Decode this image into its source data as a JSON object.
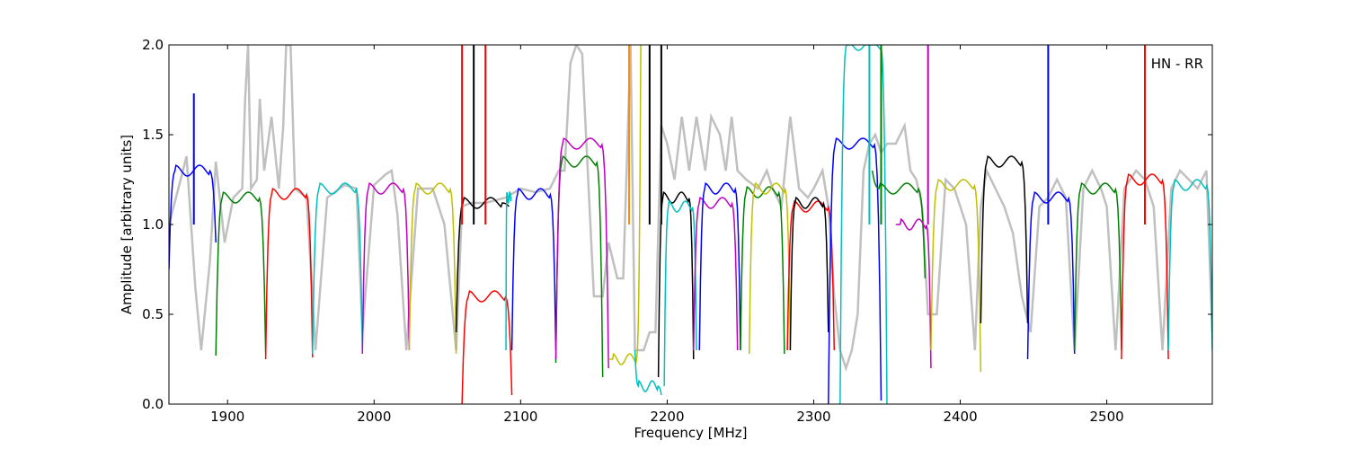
{
  "chart_data": {
    "type": "line",
    "title": "",
    "annotation": "HN - RR",
    "xlabel": "Frequency [MHz]",
    "ylabel": "Amplitude [arbitrary units]",
    "xlim": [
      1860,
      2572
    ],
    "ylim": [
      0,
      2.0
    ],
    "xticks": [
      1900,
      2000,
      2100,
      2200,
      2300,
      2400,
      2500
    ],
    "xtick_labels": [
      "1900",
      "2000",
      "2100",
      "2200",
      "2300",
      "2400",
      "2500"
    ],
    "yticks": [
      0.0,
      0.5,
      1.0,
      1.5,
      2.0
    ],
    "ytick_labels": [
      "0.0",
      "0.5",
      "1.0",
      "1.5",
      "2.0"
    ],
    "grid": false,
    "background_series": {
      "color": "#c0c0c0",
      "points": [
        [
          1860,
          1.0
        ],
        [
          1868,
          1.25
        ],
        [
          1872,
          1.38
        ],
        [
          1878,
          0.65
        ],
        [
          1882,
          0.3
        ],
        [
          1888,
          0.8
        ],
        [
          1892,
          1.35
        ],
        [
          1898,
          0.9
        ],
        [
          1904,
          1.15
        ],
        [
          1910,
          1.2
        ],
        [
          1912,
          1.7
        ],
        [
          1914,
          2.0
        ],
        [
          1916,
          1.2
        ],
        [
          1920,
          1.25
        ],
        [
          1922,
          1.7
        ],
        [
          1925,
          1.3
        ],
        [
          1930,
          1.6
        ],
        [
          1935,
          1.2
        ],
        [
          1938,
          1.55
        ],
        [
          1940,
          2.0
        ],
        [
          1943,
          2.0
        ],
        [
          1946,
          1.2
        ],
        [
          1954,
          1.15
        ],
        [
          1960,
          0.3
        ],
        [
          1968,
          1.15
        ],
        [
          1980,
          1.22
        ],
        [
          1988,
          1.2
        ],
        [
          1992,
          0.4
        ],
        [
          2000,
          1.22
        ],
        [
          2008,
          1.28
        ],
        [
          2012,
          1.3
        ],
        [
          2016,
          1.05
        ],
        [
          2022,
          0.3
        ],
        [
          2030,
          1.2
        ],
        [
          2040,
          1.2
        ],
        [
          2048,
          1.0
        ],
        [
          2056,
          0.3
        ],
        [
          2060,
          1.1
        ],
        [
          2066,
          1.12
        ],
        [
          2076,
          1.12
        ],
        [
          2090,
          1.15
        ],
        [
          2100,
          1.2
        ],
        [
          2110,
          1.18
        ],
        [
          2120,
          1.2
        ],
        [
          2126,
          1.3
        ],
        [
          2130,
          1.3
        ],
        [
          2134,
          1.9
        ],
        [
          2138,
          2.0
        ],
        [
          2142,
          1.95
        ],
        [
          2144,
          1.6
        ],
        [
          2150,
          0.6
        ],
        [
          2156,
          0.6
        ],
        [
          2160,
          0.9
        ],
        [
          2166,
          0.7
        ],
        [
          2170,
          0.7
        ],
        [
          2175,
          2.0
        ],
        [
          2178,
          0.3
        ],
        [
          2184,
          0.3
        ],
        [
          2188,
          0.4
        ],
        [
          2192,
          0.4
        ],
        [
          2196,
          1.55
        ],
        [
          2200,
          1.45
        ],
        [
          2205,
          1.25
        ],
        [
          2210,
          1.6
        ],
        [
          2215,
          1.3
        ],
        [
          2220,
          1.6
        ],
        [
          2226,
          1.3
        ],
        [
          2230,
          1.6
        ],
        [
          2236,
          1.5
        ],
        [
          2240,
          1.3
        ],
        [
          2244,
          1.6
        ],
        [
          2248,
          1.3
        ],
        [
          2254,
          1.25
        ],
        [
          2262,
          1.2
        ],
        [
          2268,
          1.3
        ],
        [
          2272,
          1.2
        ],
        [
          2278,
          1.1
        ],
        [
          2284,
          1.6
        ],
        [
          2290,
          1.2
        ],
        [
          2296,
          1.15
        ],
        [
          2300,
          1.2
        ],
        [
          2306,
          1.3
        ],
        [
          2310,
          1.1
        ],
        [
          2314,
          0.6
        ],
        [
          2318,
          0.3
        ],
        [
          2322,
          0.2
        ],
        [
          2326,
          0.3
        ],
        [
          2330,
          0.5
        ],
        [
          2334,
          1.3
        ],
        [
          2338,
          1.45
        ],
        [
          2342,
          1.5
        ],
        [
          2346,
          1.4
        ],
        [
          2350,
          1.45
        ],
        [
          2356,
          1.45
        ],
        [
          2362,
          1.55
        ],
        [
          2366,
          1.3
        ],
        [
          2370,
          1.25
        ],
        [
          2374,
          1.1
        ],
        [
          2378,
          0.5
        ],
        [
          2384,
          0.5
        ],
        [
          2390,
          1.25
        ],
        [
          2396,
          1.2
        ],
        [
          2404,
          1.0
        ],
        [
          2410,
          0.3
        ],
        [
          2414,
          1.1
        ],
        [
          2418,
          1.3
        ],
        [
          2424,
          1.2
        ],
        [
          2430,
          1.1
        ],
        [
          2436,
          0.95
        ],
        [
          2442,
          0.6
        ],
        [
          2448,
          0.4
        ],
        [
          2454,
          1.1
        ],
        [
          2460,
          1.15
        ],
        [
          2466,
          1.25
        ],
        [
          2472,
          1.15
        ],
        [
          2478,
          0.3
        ],
        [
          2484,
          1.2
        ],
        [
          2490,
          1.3
        ],
        [
          2496,
          1.2
        ],
        [
          2500,
          1.1
        ],
        [
          2506,
          0.3
        ],
        [
          2512,
          1.2
        ],
        [
          2520,
          1.3
        ],
        [
          2526,
          1.25
        ],
        [
          2532,
          1.1
        ],
        [
          2538,
          0.3
        ],
        [
          2544,
          1.2
        ],
        [
          2550,
          1.3
        ],
        [
          2556,
          1.25
        ],
        [
          2562,
          1.2
        ],
        [
          2568,
          1.3
        ],
        [
          2572,
          0.4
        ]
      ]
    },
    "series": [
      {
        "color": "#0000ff",
        "x_start": 1860,
        "x_end": 1892,
        "y_peak": 1.3,
        "y_start": 0.75,
        "y_end": 0.9
      },
      {
        "color": "#008000",
        "x_start": 1892,
        "x_end": 1926,
        "y_peak": 1.15,
        "y_start": 0.27,
        "y_end": 0.28
      },
      {
        "color": "#ff0000",
        "x_start": 1926,
        "x_end": 1958,
        "y_peak": 1.17,
        "y_start": 0.25,
        "y_end": 0.26
      },
      {
        "color": "#00bfbf",
        "x_start": 1958,
        "x_end": 1992,
        "y_peak": 1.2,
        "y_start": 0.28,
        "y_end": 0.3
      },
      {
        "color": "#bf00bf",
        "x_start": 1992,
        "x_end": 2024,
        "y_peak": 1.2,
        "y_start": 0.28,
        "y_end": 0.3
      },
      {
        "color": "#bfbf00",
        "x_start": 2024,
        "x_end": 2056,
        "y_peak": 1.2,
        "y_start": 0.3,
        "y_end": 0.28
      },
      {
        "color": "#000000",
        "x_start": 2056,
        "x_end": 2092,
        "y_peak": 1.12,
        "y_start": 0.4,
        "y_end": 1.1
      },
      {
        "color": "#ff0000",
        "x_start": 2060,
        "x_end": 2094,
        "y_peak": 0.6,
        "y_start": 0.0,
        "y_end": 0.05
      },
      {
        "color": "#00bfbf",
        "x_start": 2090,
        "x_end": 2094,
        "y_peak": 1.15,
        "y_start": 0.3,
        "y_end": 1.15
      },
      {
        "color": "#0000ff",
        "x_start": 2094,
        "x_end": 2124,
        "y_peak": 1.17,
        "y_start": 0.3,
        "y_end": 0.3
      },
      {
        "color": "#008000",
        "x_start": 2124,
        "x_end": 2156,
        "y_peak": 1.35,
        "y_start": 0.23,
        "y_end": 0.15
      },
      {
        "color": "#bf00bf",
        "x_start": 2124,
        "x_end": 2160,
        "y_peak": 1.45,
        "y_start": 0.25,
        "y_end": 0.2
      },
      {
        "color": "#bfbf00",
        "x_start": 2160,
        "x_end": 2182,
        "y_peak": 0.25,
        "y_start": 0.25,
        "y_end": 2.0
      },
      {
        "color": "#00bfbf",
        "x_start": 2178,
        "x_end": 2196,
        "y_peak": 0.1,
        "y_start": 0.3,
        "y_end": 0.05
      },
      {
        "color": "#000000",
        "x_start": 2194,
        "x_end": 2218,
        "y_peak": 1.15,
        "y_start": 0.15,
        "y_end": 0.25
      },
      {
        "color": "#00bfbf",
        "x_start": 2198,
        "x_end": 2220,
        "y_peak": 1.1,
        "y_start": 0.1,
        "y_end": 0.3
      },
      {
        "color": "#bf00bf",
        "x_start": 2218,
        "x_end": 2248,
        "y_peak": 1.12,
        "y_start": 0.3,
        "y_end": 0.3
      },
      {
        "color": "#0000ff",
        "x_start": 2222,
        "x_end": 2250,
        "y_peak": 1.2,
        "y_start": 0.3,
        "y_end": 0.3
      },
      {
        "color": "#008000",
        "x_start": 2250,
        "x_end": 2280,
        "y_peak": 1.18,
        "y_start": 0.3,
        "y_end": 0.28
      },
      {
        "color": "#bfbf00",
        "x_start": 2256,
        "x_end": 2284,
        "y_peak": 1.2,
        "y_start": 0.28,
        "y_end": 0.3
      },
      {
        "color": "#ff0000",
        "x_start": 2282,
        "x_end": 2314,
        "y_peak": 1.1,
        "y_start": 0.3,
        "y_end": 0.3
      },
      {
        "color": "#000000",
        "x_start": 2284,
        "x_end": 2310,
        "y_peak": 1.12,
        "y_start": 0.3,
        "y_end": 0.4
      },
      {
        "color": "#0000ff",
        "x_start": 2310,
        "x_end": 2346,
        "y_peak": 1.45,
        "y_start": 0.0,
        "y_end": 0.02
      },
      {
        "color": "#00bfbf",
        "x_start": 2318,
        "x_end": 2350,
        "y_peak": 2.0,
        "y_start": 0.0,
        "y_end": 0.0
      },
      {
        "color": "#008000",
        "x_start": 2340,
        "x_end": 2376,
        "y_peak": 1.2,
        "y_start": 1.3,
        "y_end": 0.7
      },
      {
        "color": "#bf00bf",
        "x_start": 2356,
        "x_end": 2380,
        "y_peak": 1.0,
        "y_start": 1.0,
        "y_end": 0.2
      },
      {
        "color": "#bfbf00",
        "x_start": 2380,
        "x_end": 2414,
        "y_peak": 1.22,
        "y_start": 0.3,
        "y_end": 0.18
      },
      {
        "color": "#000000",
        "x_start": 2414,
        "x_end": 2446,
        "y_peak": 1.35,
        "y_start": 0.45,
        "y_end": 0.45
      },
      {
        "color": "#0000ff",
        "x_start": 2446,
        "x_end": 2478,
        "y_peak": 1.15,
        "y_start": 0.25,
        "y_end": 0.28
      },
      {
        "color": "#008000",
        "x_start": 2478,
        "x_end": 2510,
        "y_peak": 1.2,
        "y_start": 0.3,
        "y_end": 0.3
      },
      {
        "color": "#ff0000",
        "x_start": 2510,
        "x_end": 2542,
        "y_peak": 1.25,
        "y_start": 0.25,
        "y_end": 0.25
      },
      {
        "color": "#00bfbf",
        "x_start": 2542,
        "x_end": 2572,
        "y_peak": 1.22,
        "y_start": 0.3,
        "y_end": 0.3
      }
    ],
    "spikes": [
      {
        "color": "#0000ff",
        "x": 1877,
        "y": 1.73
      },
      {
        "color": "#ff0000",
        "x": 2060,
        "y": 2.0
      },
      {
        "color": "#000000",
        "x": 2068,
        "y": 2.0
      },
      {
        "color": "#ff0000",
        "x": 2076,
        "y": 2.0
      },
      {
        "color": "#ff8c00",
        "x": 2174,
        "y": 2.0
      },
      {
        "color": "#000000",
        "x": 2188,
        "y": 2.0
      },
      {
        "color": "#000000",
        "x": 2196,
        "y": 2.0
      },
      {
        "color": "#00bfbf",
        "x": 2338,
        "y": 2.0
      },
      {
        "color": "#008000",
        "x": 2346,
        "y": 2.0
      },
      {
        "color": "#bf00bf",
        "x": 2378,
        "y": 2.0
      },
      {
        "color": "#0000ff",
        "x": 2460,
        "y": 2.0
      },
      {
        "color": "#ff0000",
        "x": 2526,
        "y": 2.0
      }
    ]
  }
}
